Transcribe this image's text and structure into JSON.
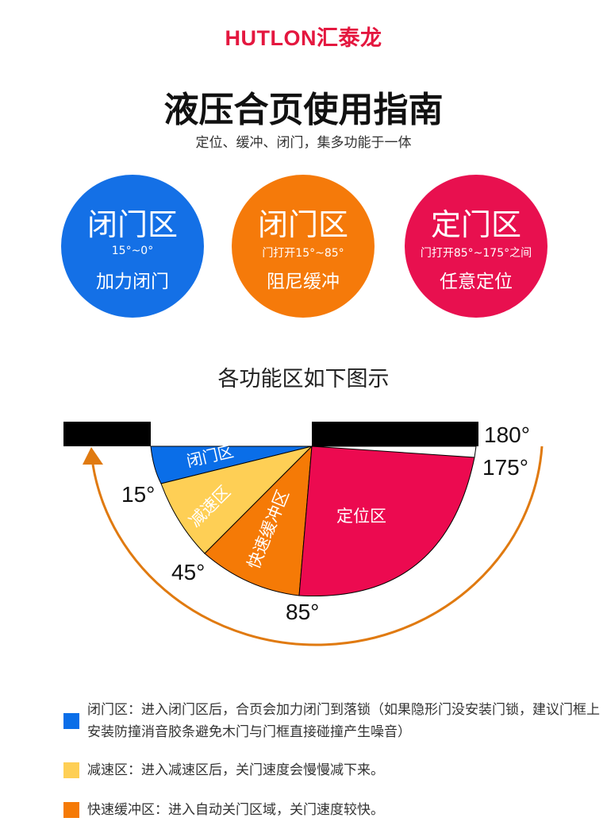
{
  "logo": {
    "text": "HUTLON汇泰龙",
    "color": "#e4173f"
  },
  "title": "液压合页使用指南",
  "subtitle": "定位、缓冲、闭门，集多功能于一体",
  "circles": [
    {
      "title": "闭门区",
      "range": "15°~0°",
      "desc": "加力闭门",
      "color": "#1470e6"
    },
    {
      "title": "闭门区",
      "range": "门打开15°~85°",
      "desc": "阻尼缓冲",
      "color": "#f57a0a"
    },
    {
      "title": "定门区",
      "range": "门打开85°~175°之间",
      "desc": "任意定位",
      "color": "#e8104f"
    }
  ],
  "diagram": {
    "heading": "各功能区如下图示",
    "zones": [
      {
        "label": "闭门区",
        "from": 0,
        "to": 15,
        "color": "#0a6ee8"
      },
      {
        "label": "减速区",
        "from": 15,
        "to": 45,
        "color": "#fecf55"
      },
      {
        "label": "快速缓冲区",
        "from": 45,
        "to": 85,
        "color": "#f57a06"
      },
      {
        "label": "定位区",
        "from": 85,
        "to": 175,
        "color": "#ec0a50"
      }
    ],
    "angle_labels": [
      "180°",
      "175°",
      "15°",
      "45°",
      "85°"
    ],
    "arrow_color": "#e07a10"
  },
  "legend": [
    {
      "text": "闭门区：进入闭门区后，合页会加力闭门到落锁（如果隐形门没安装门锁，建议门框上安装防撞消音胶条避免木门与门框直接碰撞产生噪音）",
      "color": "#0a6ee8"
    },
    {
      "text": "减速区：进入减速区后，关门速度会慢慢减下来。",
      "color": "#fecf55"
    },
    {
      "text": "快速缓冲区：进入自动关门区域，关门速度较快。",
      "color": "#f57a06"
    }
  ]
}
